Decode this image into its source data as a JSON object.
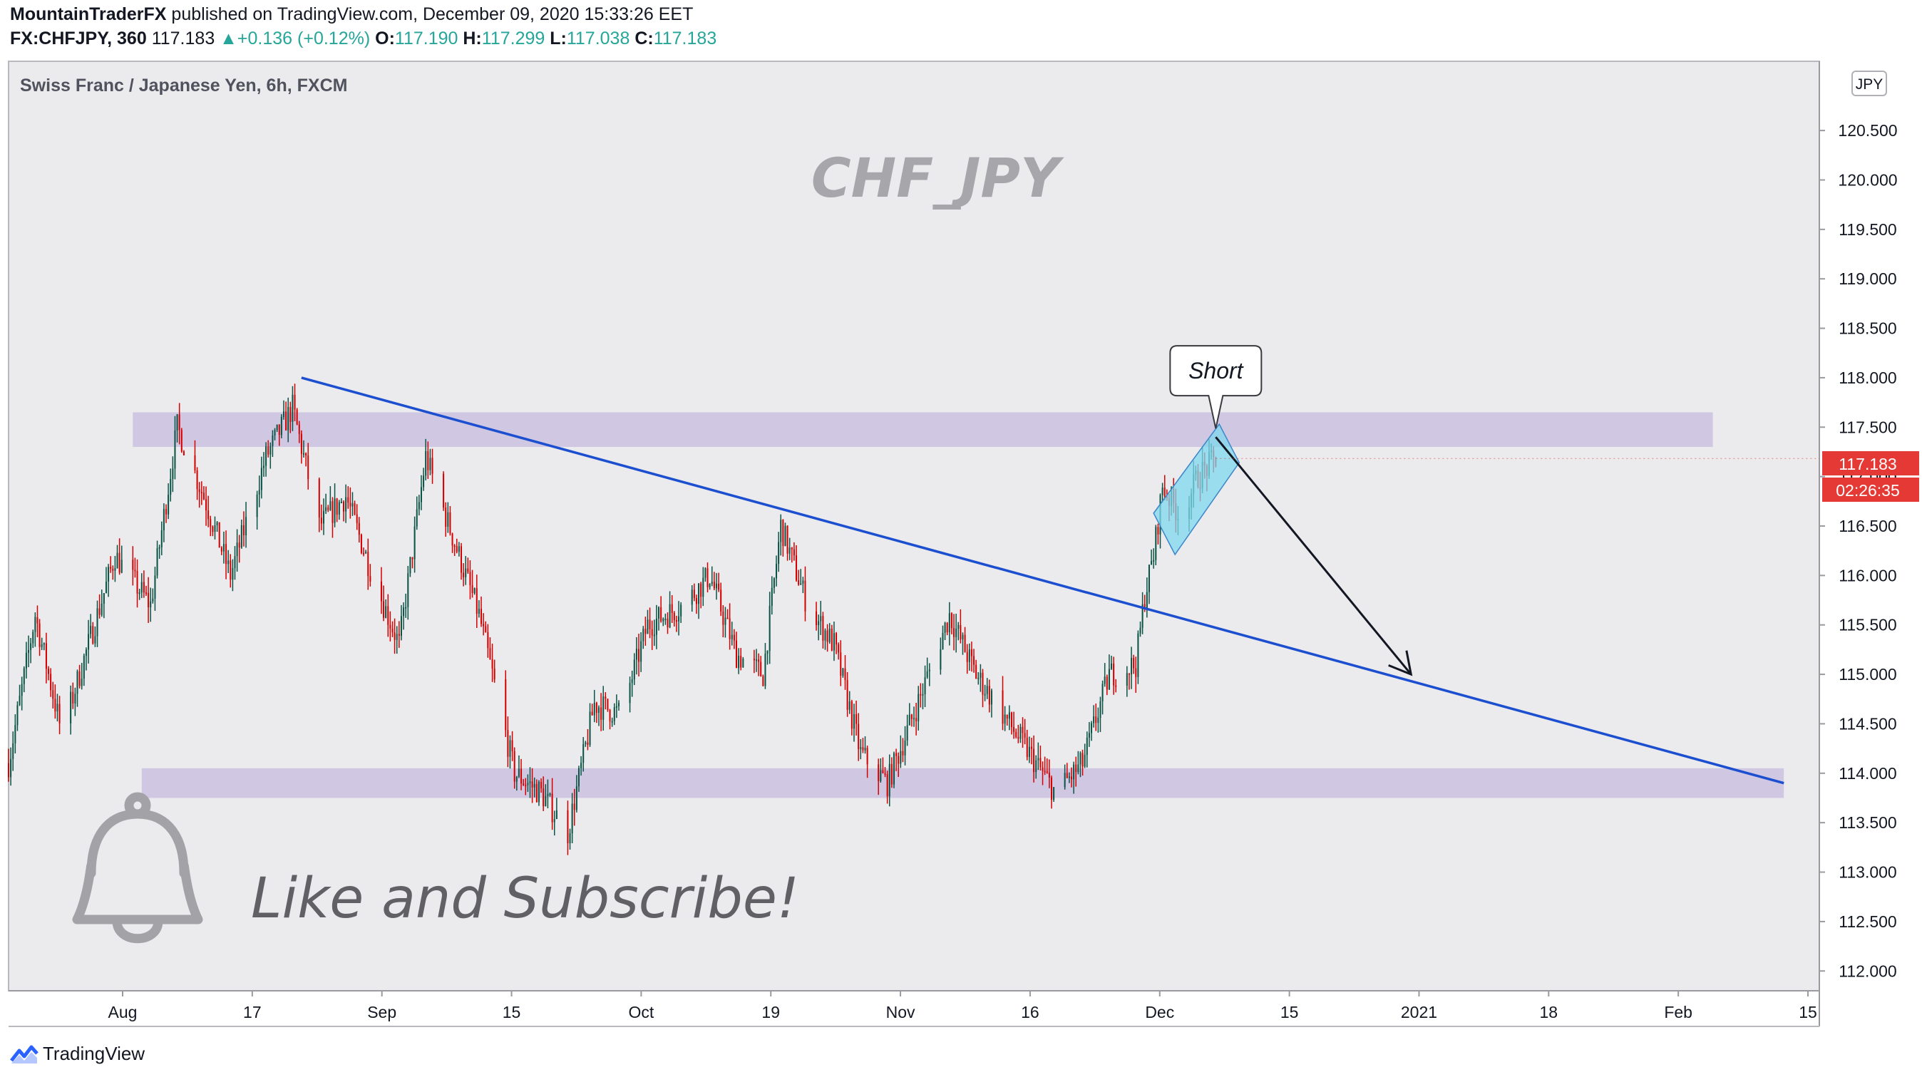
{
  "header": {
    "author": "MountainTraderFX",
    "published": "published on TradingView.com, December 09, 2020 15:33:26 EET",
    "symbol": "FX:CHFJPY, 360",
    "last": "117.183",
    "change": "+0.136 (+0.12%)",
    "open_label": "O:",
    "open": "117.190",
    "high_label": "H:",
    "high": "117.299",
    "low_label": "L:",
    "low": "117.038",
    "close_label": "C:",
    "close": "117.183"
  },
  "chart_data": {
    "type": "candlestick",
    "title": "Swiss Franc / Japanese Yen, 6h, FXCM",
    "watermark": "CHF_JPY",
    "currency": "JPY",
    "y_axis": {
      "ticks": [
        "112.000",
        "112.500",
        "113.000",
        "113.500",
        "114.000",
        "114.500",
        "115.000",
        "115.500",
        "116.000",
        "116.500",
        "117.000",
        "117.500",
        "118.000",
        "118.500",
        "119.000",
        "119.500",
        "120.000",
        "120.500"
      ],
      "ylim": [
        111.8,
        121.2
      ]
    },
    "x_axis": {
      "ticks": [
        "Aug",
        "17",
        "Sep",
        "15",
        "Oct",
        "19",
        "Nov",
        "16",
        "Dec",
        "15",
        "2021",
        "18",
        "Feb",
        "15"
      ],
      "xlim": [
        "2020-07-26",
        "2021-02-15"
      ]
    },
    "price_label": "117.183",
    "countdown_label": "02:26:35",
    "price_path": [
      {
        "x": "2020-07-26",
        "y": 114.1
      },
      {
        "x": "2020-07-29",
        "y": 115.6
      },
      {
        "x": "2020-08-01",
        "y": 114.4
      },
      {
        "x": "2020-08-04",
        "y": 115.3
      },
      {
        "x": "2020-08-07",
        "y": 116.2
      },
      {
        "x": "2020-08-11",
        "y": 115.7
      },
      {
        "x": "2020-08-14",
        "y": 117.5
      },
      {
        "x": "2020-08-17",
        "y": 116.8
      },
      {
        "x": "2020-08-20",
        "y": 116.0
      },
      {
        "x": "2020-08-24",
        "y": 117.2
      },
      {
        "x": "2020-08-27",
        "y": 117.7
      },
      {
        "x": "2020-08-30",
        "y": 116.5
      },
      {
        "x": "2020-09-02",
        "y": 116.8
      },
      {
        "x": "2020-09-05",
        "y": 116.0
      },
      {
        "x": "2020-09-08",
        "y": 115.3
      },
      {
        "x": "2020-09-11",
        "y": 117.2
      },
      {
        "x": "2020-09-14",
        "y": 116.4
      },
      {
        "x": "2020-09-17",
        "y": 115.6
      },
      {
        "x": "2020-09-21",
        "y": 114.0
      },
      {
        "x": "2020-09-24",
        "y": 113.8
      },
      {
        "x": "2020-09-27",
        "y": 113.4
      },
      {
        "x": "2020-09-30",
        "y": 114.7
      },
      {
        "x": "2020-10-03",
        "y": 114.6
      },
      {
        "x": "2020-10-06",
        "y": 115.5
      },
      {
        "x": "2020-10-10",
        "y": 115.7
      },
      {
        "x": "2020-10-13",
        "y": 116.0
      },
      {
        "x": "2020-10-16",
        "y": 115.2
      },
      {
        "x": "2020-10-19",
        "y": 115.0
      },
      {
        "x": "2020-10-21",
        "y": 116.5
      },
      {
        "x": "2020-10-24",
        "y": 115.7
      },
      {
        "x": "2020-10-27",
        "y": 115.3
      },
      {
        "x": "2020-10-30",
        "y": 114.2
      },
      {
        "x": "2020-11-02",
        "y": 113.9
      },
      {
        "x": "2020-11-05",
        "y": 114.6
      },
      {
        "x": "2020-11-09",
        "y": 115.6
      },
      {
        "x": "2020-11-12",
        "y": 115.0
      },
      {
        "x": "2020-11-15",
        "y": 114.6
      },
      {
        "x": "2020-11-18",
        "y": 114.2
      },
      {
        "x": "2020-11-21",
        "y": 113.8
      },
      {
        "x": "2020-11-24",
        "y": 114.1
      },
      {
        "x": "2020-11-27",
        "y": 115.0
      },
      {
        "x": "2020-11-30",
        "y": 115.1
      },
      {
        "x": "2020-12-01",
        "y": 115.8
      },
      {
        "x": "2020-12-02",
        "y": 116.2
      },
      {
        "x": "2020-12-03",
        "y": 116.9
      },
      {
        "x": "2020-12-05",
        "y": 116.6
      },
      {
        "x": "2020-12-07",
        "y": 117.0
      },
      {
        "x": "2020-12-09",
        "y": 117.18
      }
    ],
    "zones": [
      {
        "name": "resistance",
        "from": "2020-08-09",
        "to": "2021-02-03",
        "y_low": 117.3,
        "y_high": 117.65
      },
      {
        "name": "support",
        "from": "2020-08-10",
        "to": "2021-02-11",
        "y_low": 113.75,
        "y_high": 114.05
      }
    ],
    "trendline": {
      "x1": "2020-08-28",
      "y1": 118.0,
      "x2": "2021-02-11",
      "y2": 113.9
    },
    "arrow": {
      "x1": "2020-12-09",
      "y1": 117.4,
      "x2": "2020-12-31",
      "y2": 115.0
    },
    "channel": {
      "from": "2020-12-02",
      "to": "2020-12-11",
      "y_low": 116.5,
      "y_high": 117.3
    },
    "callout": {
      "text": "Short",
      "x": "2020-12-09",
      "y": 117.4
    },
    "overlay_text": "Like and Subscribe!"
  },
  "footer": {
    "brand": "TradingView"
  },
  "colors": {
    "up": "#26a69a",
    "down": "#ef5350",
    "candle_up": "#0b5345",
    "candle_down": "#d50000",
    "zone": "#cdc4e1",
    "trendline": "#1c4fcf",
    "channel": "#7fd8ee",
    "price_tag": "#e53935",
    "background": "#ebebee"
  }
}
